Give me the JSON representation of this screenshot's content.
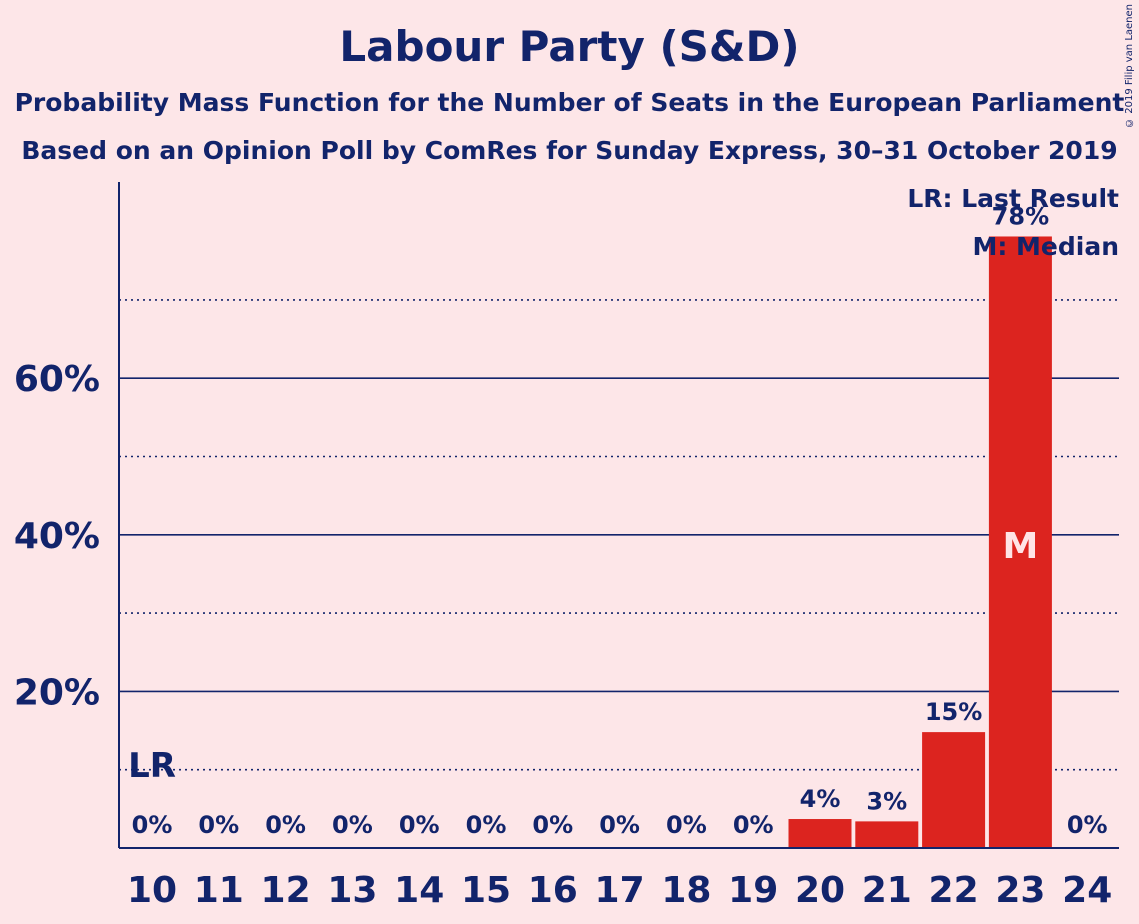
{
  "title": "Labour Party (S&D)",
  "subtitle_1": "Probability Mass Function for the Number of Seats in the European Parliament",
  "subtitle_2": "Based on an Opinion Poll by ComRes for Sunday Express, 30–31 October 2019",
  "copyright": "© 2019 Filip van Laenen",
  "legend": {
    "last_result": "LR: Last Result",
    "median": "M: Median"
  },
  "colors": {
    "background": "#fde6e8",
    "bar": "#dc241f",
    "text": "#12246b"
  },
  "chart_data": {
    "type": "bar",
    "categories": [
      "10",
      "11",
      "12",
      "13",
      "14",
      "15",
      "16",
      "17",
      "18",
      "19",
      "20",
      "21",
      "22",
      "23",
      "24"
    ],
    "values": [
      0,
      0,
      0,
      0,
      0,
      0,
      0,
      0,
      0,
      0,
      3.7,
      3.4,
      14.8,
      78.1,
      0
    ],
    "value_labels": [
      "0%",
      "0%",
      "0%",
      "0%",
      "0%",
      "0%",
      "0%",
      "0%",
      "0%",
      "0%",
      "4%",
      "3%",
      "15%",
      "78%",
      "0%"
    ],
    "ylim": [
      0,
      85
    ],
    "yticks": [
      20,
      40,
      60
    ],
    "ytick_labels": [
      "20%",
      "40%",
      "60%"
    ],
    "minor_gridlines": [
      10,
      30,
      50,
      70
    ],
    "last_result": {
      "category": "10",
      "label": "LR"
    },
    "median": {
      "category": "23",
      "label": "M"
    }
  }
}
